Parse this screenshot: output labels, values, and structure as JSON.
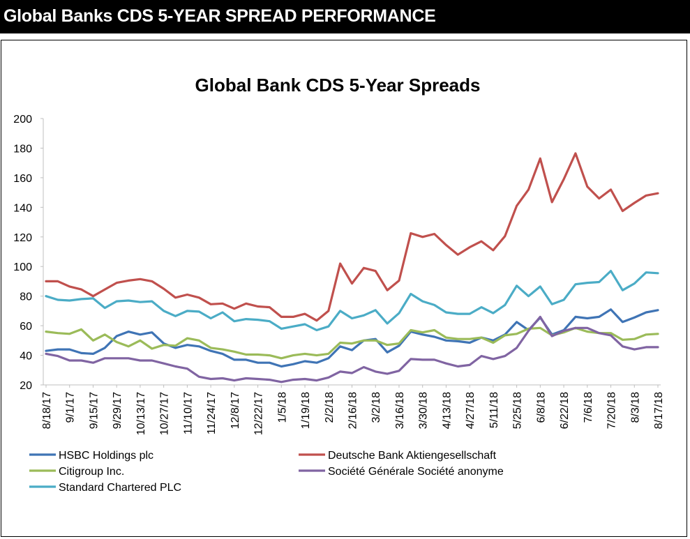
{
  "header": {
    "title": "Global Banks CDS 5-YEAR SPREAD PERFORMANCE"
  },
  "chart_data": {
    "type": "line",
    "title": "Global Bank CDS 5-Year Spreads",
    "xlabel": "",
    "ylabel": "",
    "ylim": [
      20,
      200
    ],
    "yticks": [
      20,
      40,
      60,
      80,
      100,
      120,
      140,
      160,
      180,
      200
    ],
    "grid": false,
    "legend_position": "bottom",
    "x": [
      "8/18/17",
      "8/25/17",
      "9/1/17",
      "9/8/17",
      "9/15/17",
      "9/22/17",
      "9/29/17",
      "10/6/17",
      "10/13/17",
      "10/20/17",
      "10/27/17",
      "11/3/17",
      "11/10/17",
      "11/17/17",
      "11/24/17",
      "12/1/17",
      "12/8/17",
      "12/15/17",
      "12/22/17",
      "12/29/17",
      "1/5/18",
      "1/12/18",
      "1/19/18",
      "1/26/18",
      "2/2/18",
      "2/9/18",
      "2/16/18",
      "2/23/18",
      "3/2/18",
      "3/9/18",
      "3/16/18",
      "3/23/18",
      "3/30/18",
      "4/6/18",
      "4/13/18",
      "4/20/18",
      "4/27/18",
      "5/4/18",
      "5/11/18",
      "5/18/18",
      "5/25/18",
      "6/1/18",
      "6/8/18",
      "6/15/18",
      "6/22/18",
      "6/29/18",
      "7/6/18",
      "7/13/18",
      "7/20/18",
      "7/27/18",
      "8/3/18",
      "8/10/18",
      "8/17/18"
    ],
    "x_tick_labels": [
      "8/18/17",
      "9/1/17",
      "9/15/17",
      "9/29/17",
      "10/13/17",
      "10/27/17",
      "11/10/17",
      "11/24/17",
      "12/8/17",
      "12/22/17",
      "1/5/18",
      "1/19/18",
      "2/2/18",
      "2/16/18",
      "3/2/18",
      "3/16/18",
      "3/30/18",
      "4/13/18",
      "4/27/18",
      "5/11/18",
      "5/25/18",
      "6/8/18",
      "6/22/18",
      "7/6/18",
      "7/20/18",
      "8/3/18",
      "8/17/18"
    ],
    "series": [
      {
        "name": "HSBC Holdings plc",
        "color": "#3f74b5",
        "values": [
          43,
          44,
          44,
          41.5,
          41,
          45,
          53,
          56,
          54,
          55.5,
          48,
          45,
          47,
          46,
          43,
          41,
          37,
          37,
          35,
          35,
          32.5,
          34,
          36,
          35,
          38,
          46,
          43.5,
          50,
          51,
          42,
          46.5,
          56,
          54,
          52.5,
          50,
          49.5,
          48.5,
          52,
          50,
          54,
          62.5,
          57,
          65.5,
          54,
          57,
          66,
          65,
          66,
          71,
          62.5,
          65.5,
          69,
          70.5
        ]
      },
      {
        "name": "Deutsche Bank Aktiengesellschaft",
        "color": "#c0504d",
        "values": [
          90,
          90,
          86.5,
          84.5,
          80,
          84.5,
          89,
          90.5,
          91.5,
          90,
          85,
          79,
          81,
          79,
          74.5,
          75,
          71.5,
          75,
          73,
          72.5,
          66,
          66,
          68,
          63.5,
          70,
          102,
          88.5,
          99,
          97,
          84,
          90.5,
          122.5,
          120,
          122,
          114.5,
          108,
          113,
          117,
          111,
          120.5,
          141,
          152,
          173,
          143.5,
          159,
          176.5,
          154,
          146,
          152,
          137.5,
          143,
          148,
          149.5
        ]
      },
      {
        "name": "Citigroup Inc.",
        "color": "#9bbb59",
        "values": [
          56,
          55,
          54.5,
          57.5,
          50,
          54,
          49,
          46,
          50,
          44.5,
          47,
          46.5,
          51.5,
          50,
          45,
          44,
          42.5,
          40.5,
          40.5,
          40,
          38,
          40,
          41,
          40,
          41,
          48.5,
          48,
          50,
          50,
          47,
          48,
          57,
          55.5,
          57,
          52,
          51,
          51,
          52,
          48.5,
          53.5,
          54.5,
          58,
          58.5,
          53.5,
          55.5,
          58.5,
          56,
          55,
          55,
          50.5,
          51,
          54,
          54.5
        ]
      },
      {
        "name": "Société Générale Société anonyme",
        "color": "#8064a2",
        "values": [
          41,
          39.5,
          36.5,
          36.5,
          35,
          38,
          38,
          38,
          36.5,
          36.5,
          34.5,
          32.5,
          31,
          25.5,
          24,
          24.5,
          23,
          24.5,
          24,
          23.5,
          22,
          23.5,
          24,
          23,
          25,
          29,
          28,
          32,
          29,
          27.5,
          29.5,
          37.5,
          37,
          37,
          34.5,
          32.5,
          33.5,
          39.5,
          37.5,
          39.5,
          45,
          56.5,
          66,
          53,
          56.5,
          58.5,
          58.5,
          55,
          53.5,
          46,
          44,
          45.5,
          45.5
        ]
      },
      {
        "name": "Standard Chartered PLC",
        "color": "#4bacc6",
        "values": [
          80,
          77.5,
          77,
          78,
          78.5,
          72,
          76.5,
          77,
          76,
          76.5,
          70,
          66.5,
          70,
          69.5,
          65,
          69,
          63,
          64.5,
          64,
          63,
          58,
          59.5,
          61,
          57,
          59.5,
          70,
          65,
          67,
          70.5,
          61.5,
          68.5,
          81.5,
          76.5,
          74,
          69,
          68,
          68,
          72.5,
          68.5,
          74,
          87,
          80,
          86.5,
          74.5,
          77.5,
          88,
          89,
          89.5,
          97,
          84,
          88.5,
          96,
          95.5
        ]
      }
    ]
  }
}
